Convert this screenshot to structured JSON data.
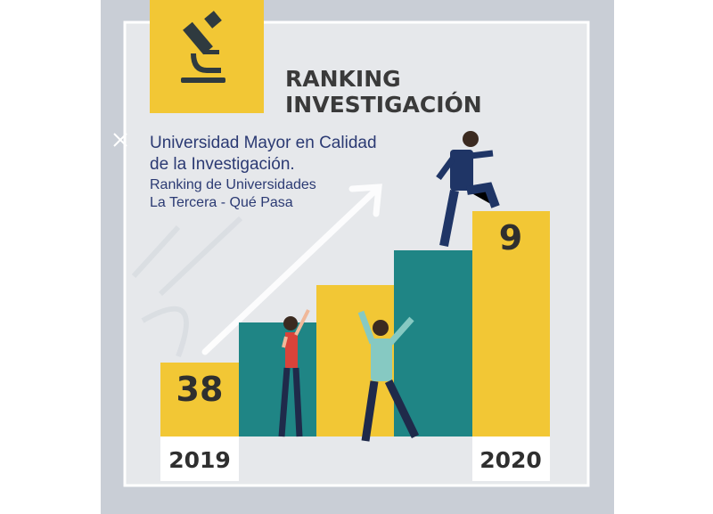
{
  "header": {
    "title": [
      "RANKING",
      "INVESTIGACIÓN"
    ]
  },
  "subtitle": {
    "lines": [
      "Universidad Mayor en Calidad",
      "de la Investigación."
    ],
    "source": [
      "Ranking de Universidades",
      "La Tercera - Qué Pasa"
    ]
  },
  "ranking": [
    {
      "year": "2019",
      "rank": "38"
    },
    {
      "year": "2020",
      "rank": "9"
    }
  ]
}
